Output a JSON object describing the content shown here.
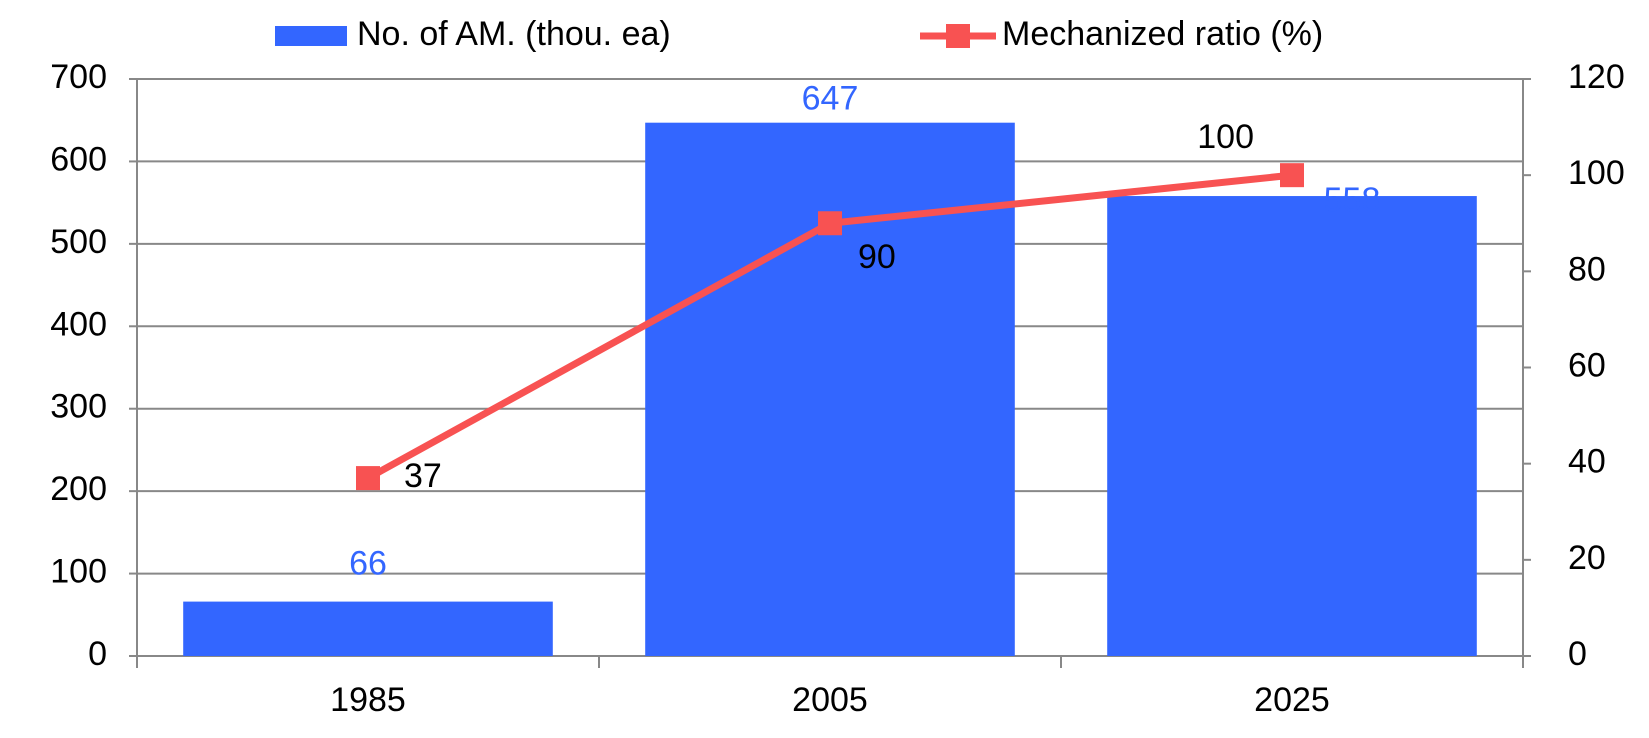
{
  "chart_data": {
    "type": "bar-line",
    "categories": [
      "1985",
      "2005",
      "2025"
    ],
    "series": [
      {
        "name": "No. of AM. (thou. ea)",
        "type": "bar",
        "color": "#3366ff",
        "values": [
          66,
          647,
          558
        ]
      },
      {
        "name": "Mechanized ratio (%)",
        "type": "line",
        "color": "#f85252",
        "axis": "y2",
        "values": [
          37,
          90,
          100
        ]
      }
    ],
    "ylim": [
      0,
      700
    ],
    "yticks": [
      0,
      100,
      200,
      300,
      400,
      500,
      600,
      700
    ],
    "y2lim": [
      0,
      120
    ],
    "y2ticks": [
      0,
      20,
      40,
      60,
      80,
      100,
      120
    ],
    "grid": true,
    "legend": "top"
  }
}
